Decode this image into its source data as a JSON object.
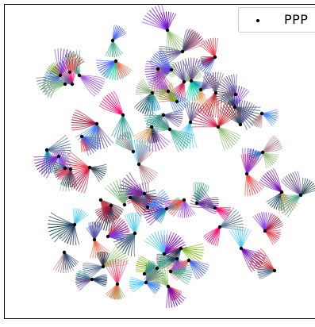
{
  "chart_data": {
    "type": "scatter",
    "title": "",
    "xlabel": "",
    "ylabel": "",
    "grid": false,
    "axes_visible": false,
    "legend_position": "top-right",
    "background_style": "dense multicolored fan-shaped streamline petals",
    "series": [
      {
        "name": "PPP",
        "marker": "dot",
        "color": "#000000",
        "x": [
          211,
          142,
          146,
          230,
          271,
          199,
          216,
          76,
          100,
          88,
          91,
          82,
          192,
          232,
          241,
          253,
          272,
          212,
          223,
          206,
          240,
          296,
          122,
          191,
          155,
          214,
          303,
          297,
          330,
          275,
          331,
          59,
          74,
          103,
          82,
          89,
          113,
          168,
          175,
          182,
          127,
          140,
          157,
          164,
          210,
          248,
          271,
          311,
          355,
          379,
          119,
          232,
          186,
          94,
          136,
          170,
          130,
          228,
          277,
          304,
          334,
          346,
          207,
          223,
          238,
          81,
          198,
          182,
          215,
          212,
          116,
          148,
          184
        ],
        "y": [
          38,
          51,
          77,
          65,
          72,
          87,
          88,
          95,
          95,
          91,
          106,
          106,
          117,
          103,
          102,
          113,
          117,
          115,
          128,
          145,
          154,
          135,
          156,
          160,
          145,
          163,
          157,
          119,
          143,
          160,
          192,
          189,
          197,
          172,
          212,
          213,
          211,
          191,
          207,
          244,
          252,
          259,
          258,
          249,
          263,
          256,
          262,
          219,
          242,
          246,
          302,
          252,
          261,
          283,
          298,
          294,
          336,
          313,
          286,
          313,
          291,
          341,
          320,
          326,
          328,
          318,
          338,
          345,
          342,
          361,
          352,
          358,
          356
        ]
      }
    ]
  }
}
